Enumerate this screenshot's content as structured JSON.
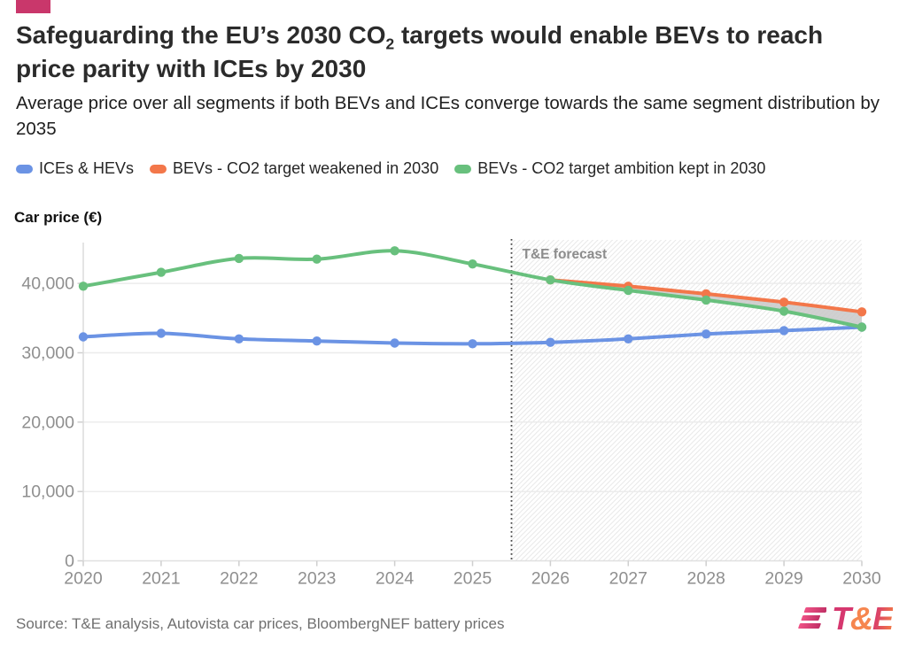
{
  "brand": {
    "flag_color": "#c9376b",
    "logo": {
      "t": "T",
      "amp": "&",
      "e": "E",
      "pink": "#d6386f",
      "orange": "#f6864f"
    }
  },
  "header": {
    "title_pre": "Safeguarding the EU’s 2030 CO",
    "title_sub": "2",
    "title_post": " targets would enable BEVs to reach price parity with ICEs by 2030",
    "subtitle": "Average price over all segments if both BEVs and ICEs converge towards the same segment distribution by 2035"
  },
  "legend": {
    "items": [
      {
        "label": "ICEs & HEVs",
        "color": "#6b93e4"
      },
      {
        "label": "BEVs - CO2 target weakened in 2030",
        "color": "#f3774a"
      },
      {
        "label": "BEVs - CO2 target ambition kept in 2030",
        "color": "#68c07d"
      }
    ]
  },
  "axis_title": "Car price (€)",
  "source": "Source: T&E analysis, Autovista car prices, BloombergNEF battery prices",
  "chart_data": {
    "type": "line",
    "title": "Average car price if BEVs and ICEs converge towards the same segment distribution by 2035",
    "xlabel": "",
    "ylabel": "Car price (€)",
    "x": [
      2020,
      2021,
      2022,
      2023,
      2024,
      2025,
      2026,
      2027,
      2028,
      2029,
      2030
    ],
    "xlim": [
      2020,
      2030
    ],
    "ylim": [
      0,
      46400
    ],
    "yticks": [
      0,
      10000,
      20000,
      30000,
      40000
    ],
    "grid": "horizontal",
    "legend_position": "top",
    "series": [
      {
        "name": "ICEs & HEVs",
        "color": "#6b93e4",
        "values": [
          32300,
          32800,
          32000,
          31700,
          31400,
          31300,
          31500,
          32000,
          32700,
          33200,
          33700
        ]
      },
      {
        "name": "BEVs - CO2 target weakened in 2030",
        "color": "#f3774a",
        "values": [
          null,
          null,
          null,
          null,
          null,
          null,
          40500,
          39600,
          38500,
          37300,
          35900
        ]
      },
      {
        "name": "BEVs - CO2 target ambition kept in 2030",
        "color": "#68c07d",
        "values": [
          39600,
          41600,
          43600,
          43500,
          44700,
          42800,
          40500,
          39000,
          37600,
          36000,
          33700
        ]
      }
    ],
    "band": {
      "upper": "BEVs - CO2 target weakened in 2030",
      "lower": "BEVs - CO2 target ambition kept in 2030",
      "color": "#c8c8c8"
    },
    "forecast_divider": {
      "x": 2025.5,
      "label": "T&E forecast",
      "hatched_region": true
    }
  }
}
